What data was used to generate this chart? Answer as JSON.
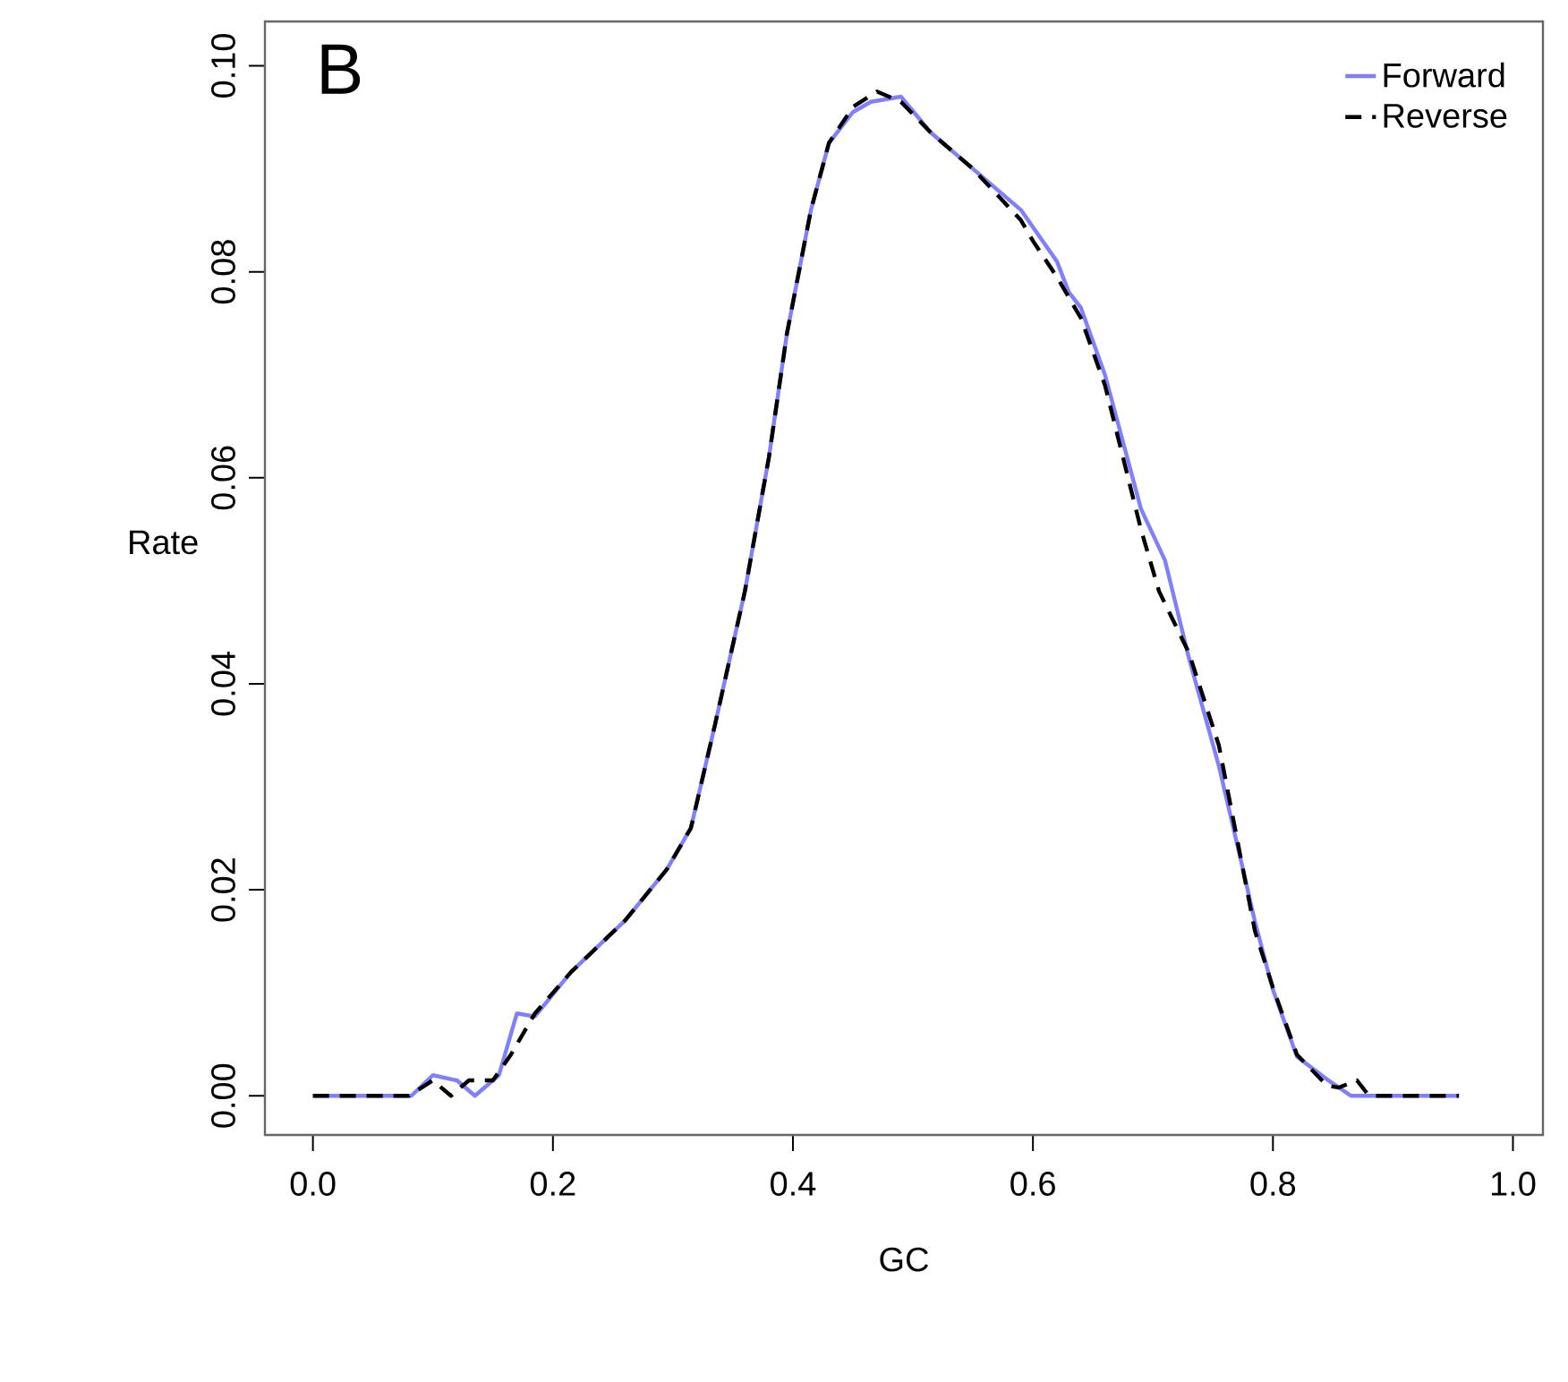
{
  "chart_data": {
    "type": "line",
    "xlabel": "GC",
    "ylabel": "Rate",
    "annotations": [
      "B"
    ],
    "xlim": [
      -0.04,
      1.025
    ],
    "ylim": [
      -0.0038,
      0.1043
    ],
    "xticks": [
      {
        "value": 0,
        "label": "0.0"
      },
      0.2,
      0.4,
      0.6,
      0.8,
      {
        "value": 1,
        "label": "1.0"
      }
    ],
    "yticks": [
      {
        "value": 0,
        "label": "0.00"
      },
      0.02,
      0.04,
      0.06,
      0.08,
      {
        "value": 0.1,
        "label": "0.10"
      }
    ],
    "grid": false,
    "legend": "top right",
    "marker": "none",
    "series": [
      {
        "name": "Forward",
        "color": "#7f7fff",
        "line_style": "solid",
        "x": [
          0,
          0.082,
          0.1,
          0.12,
          0.135,
          0.155,
          0.17,
          0.185,
          0.215,
          0.26,
          0.295,
          0.315,
          0.335,
          0.36,
          0.38,
          0.395,
          0.415,
          0.43,
          0.45,
          0.465,
          0.49,
          0.515,
          0.55,
          0.59,
          0.62,
          0.63,
          0.64,
          0.66,
          0.69,
          0.71,
          0.73,
          0.755,
          0.775,
          0.785,
          0.8,
          0.82,
          0.845,
          0.865,
          0.955
        ],
        "values": [
          0,
          0,
          0.002,
          0.0015,
          0,
          0.002,
          0.008,
          0.0077,
          0.012,
          0.017,
          0.022,
          0.026,
          0.036,
          0.049,
          0.062,
          0.074,
          0.086,
          0.0925,
          0.0955,
          0.0965,
          0.097,
          0.0935,
          0.09,
          0.086,
          0.081,
          0.078,
          0.0765,
          0.07,
          0.057,
          0.052,
          0.0425,
          0.032,
          0.022,
          0.0169,
          0.0103,
          0.0038,
          0.0016,
          0,
          0
        ]
      },
      {
        "name": "Reverse",
        "color": "#000000",
        "line_style": "dashed",
        "x": [
          0,
          0.08,
          0.1,
          0.115,
          0.13,
          0.15,
          0.165,
          0.185,
          0.215,
          0.26,
          0.295,
          0.315,
          0.335,
          0.36,
          0.38,
          0.395,
          0.415,
          0.43,
          0.45,
          0.47,
          0.49,
          0.515,
          0.55,
          0.59,
          0.6,
          0.62,
          0.64,
          0.66,
          0.69,
          0.705,
          0.73,
          0.755,
          0.775,
          0.785,
          0.8,
          0.82,
          0.845,
          0.855,
          0.87,
          0.88,
          0.955
        ],
        "values": [
          0,
          0,
          0.0015,
          0,
          0.0015,
          0.0015,
          0.004,
          0.008,
          0.012,
          0.017,
          0.022,
          0.026,
          0.036,
          0.049,
          0.062,
          0.074,
          0.086,
          0.0925,
          0.096,
          0.0975,
          0.0965,
          0.0935,
          0.09,
          0.085,
          0.083,
          0.0795,
          0.0755,
          0.069,
          0.055,
          0.049,
          0.043,
          0.034,
          0.022,
          0.016,
          0.0105,
          0.004,
          0.001,
          0.0008,
          0.0015,
          0,
          0
        ]
      }
    ]
  }
}
